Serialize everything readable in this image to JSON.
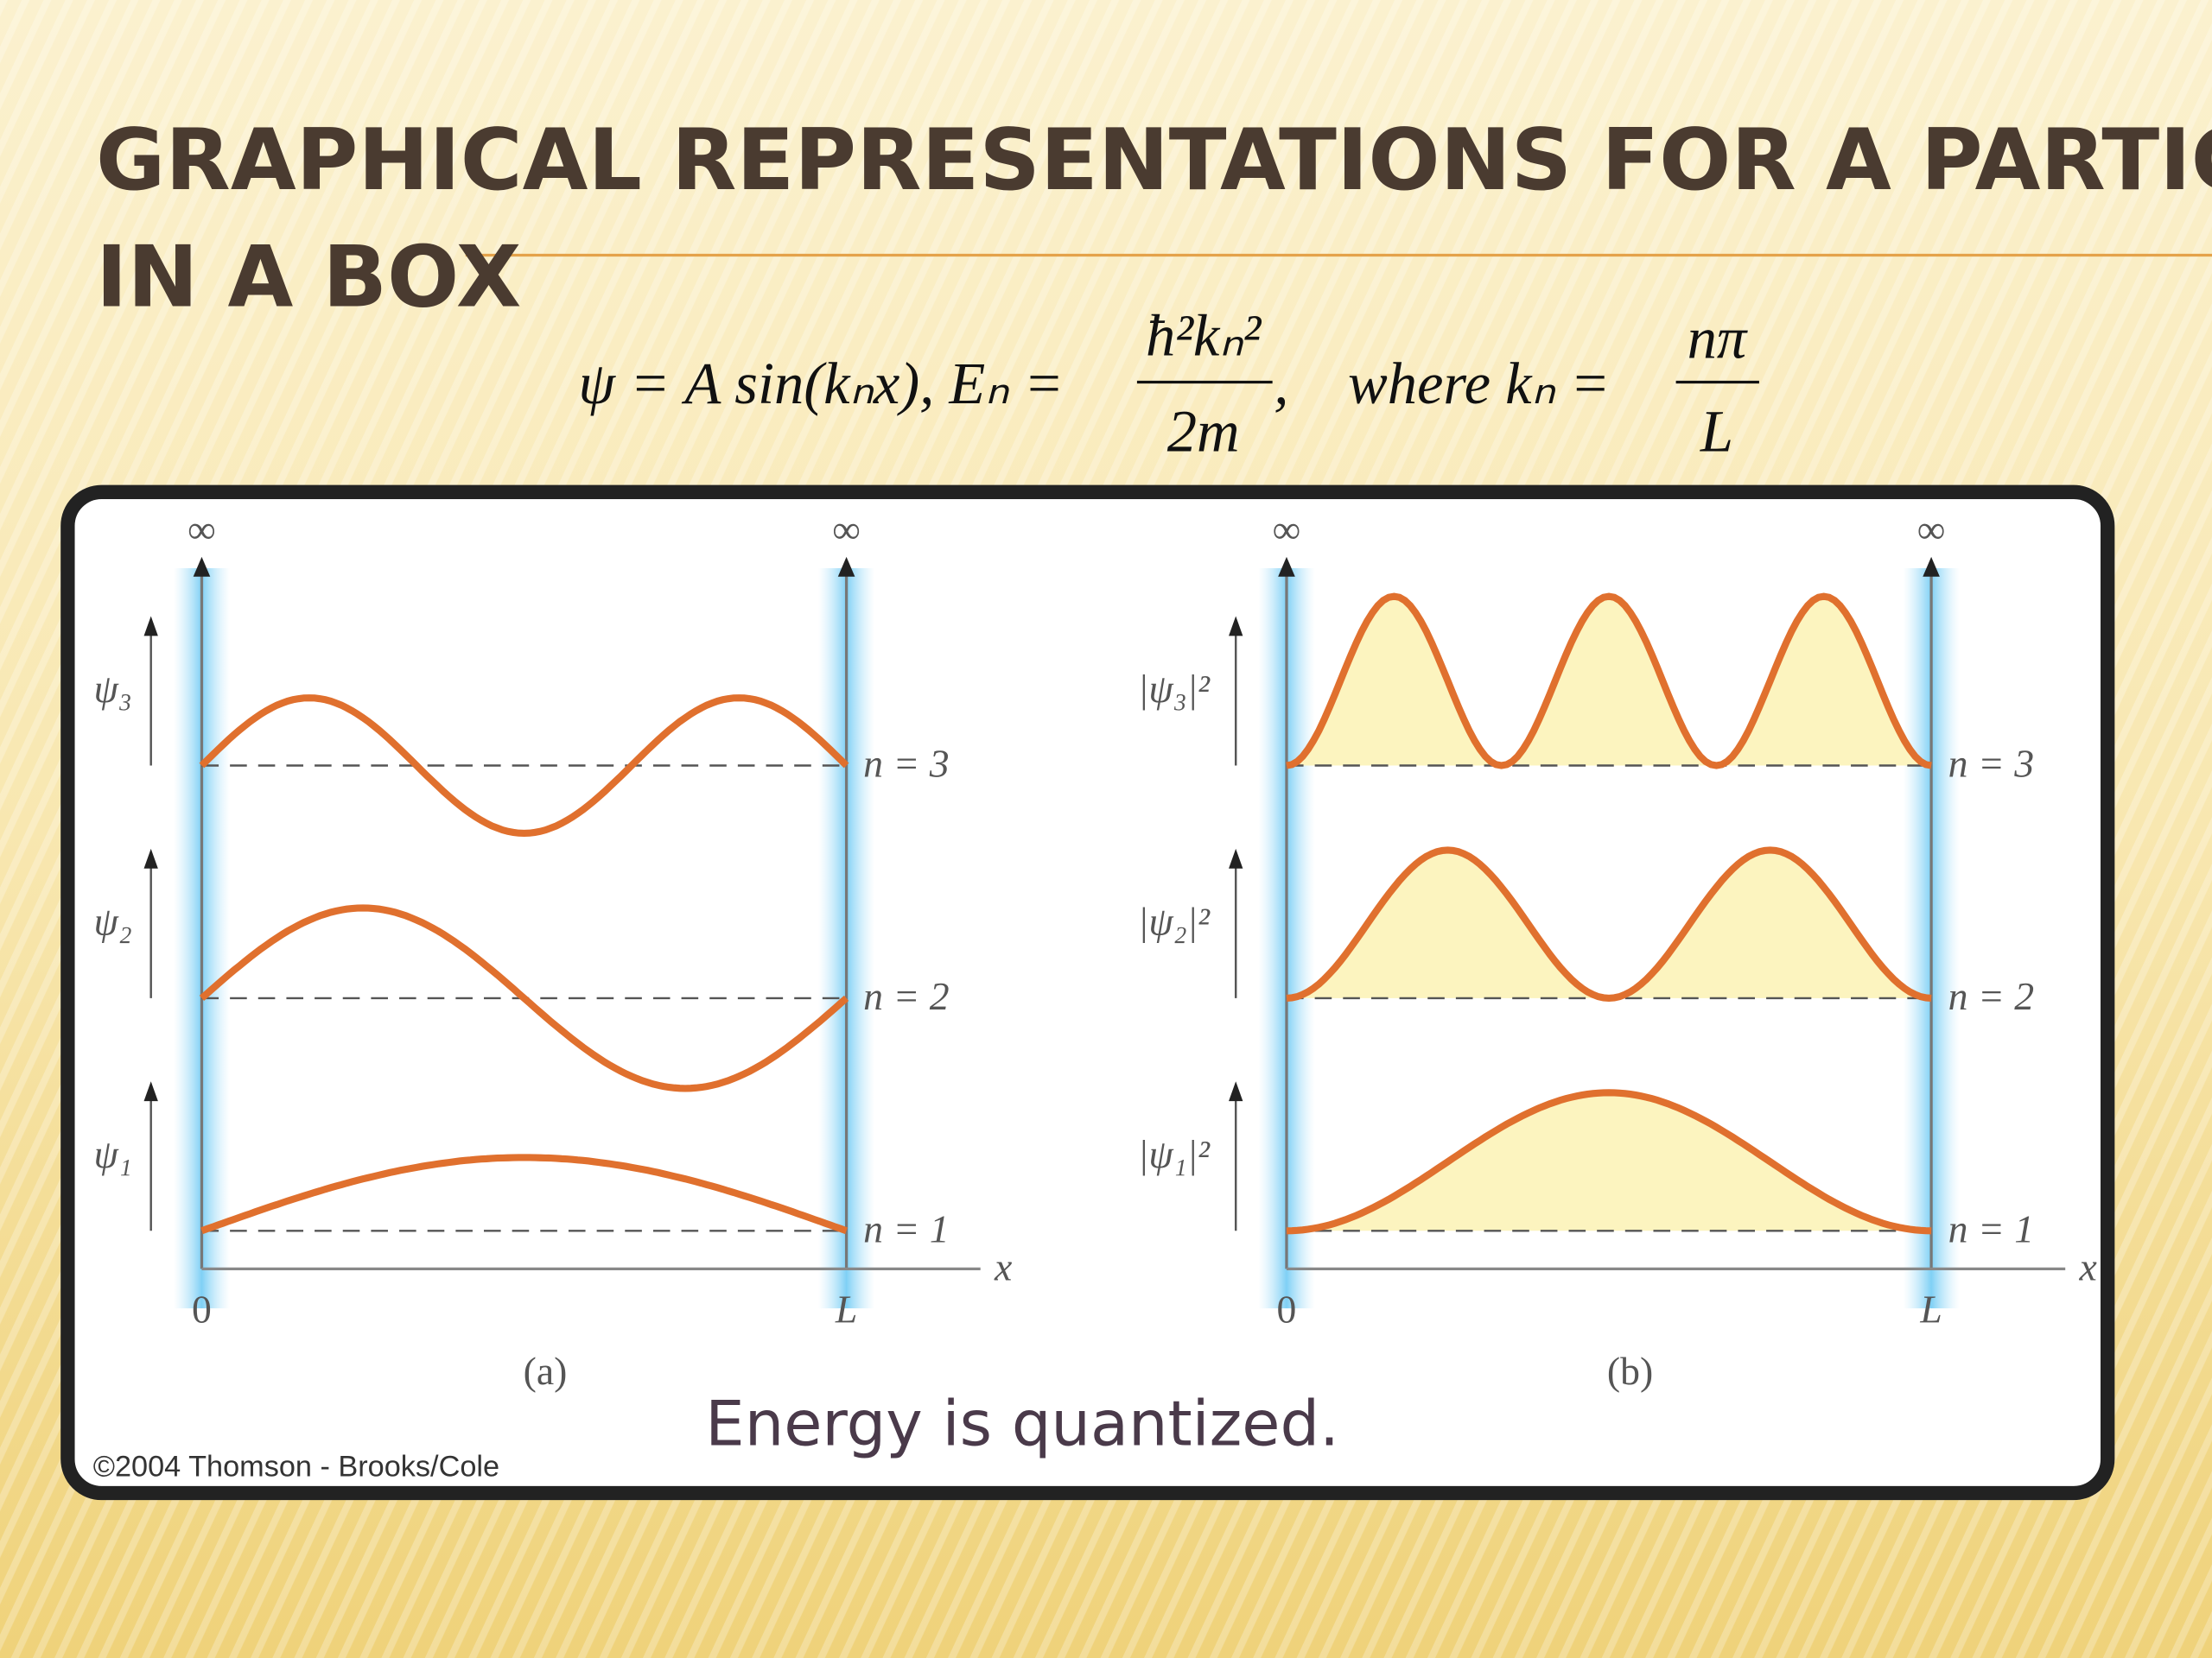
{
  "slide": {
    "title_lines": [
      "GRAPHICAL REPRESENTATIONS FOR A PARTICLE",
      "IN A BOX"
    ],
    "equation": {
      "lhs": "ψ = A sin(kₙx), Eₙ =",
      "energy_numerator": "ħ²kₙ²",
      "energy_denominator": "2m",
      "middle": ",    where kₙ =",
      "k_numerator": "nπ",
      "k_denominator": "L"
    },
    "figure": {
      "panels": [
        {
          "caption": "(a)",
          "infinity_labels": [
            "∞",
            "∞"
          ],
          "x_axis_label": "x",
          "origin_label": "0",
          "width_label": "L",
          "levels": [
            {
              "function_label": "ψ₃",
              "level_label": "n = 3"
            },
            {
              "function_label": "ψ₂",
              "level_label": "n = 2"
            },
            {
              "function_label": "ψ₁",
              "level_label": "n = 1"
            }
          ]
        },
        {
          "caption": "(b)",
          "infinity_labels": [
            "∞",
            "∞"
          ],
          "x_axis_label": "x",
          "origin_label": "0",
          "width_label": "L",
          "levels": [
            {
              "function_label": "|ψ₃|²",
              "level_label": "n = 3"
            },
            {
              "function_label": "|ψ₂|²",
              "level_label": "n = 2"
            },
            {
              "function_label": "|ψ₁|²",
              "level_label": "n = 1"
            }
          ]
        }
      ]
    },
    "statement": "Energy is quantized.",
    "credit": "©2004 Thomson - Brooks/Cole"
  }
}
